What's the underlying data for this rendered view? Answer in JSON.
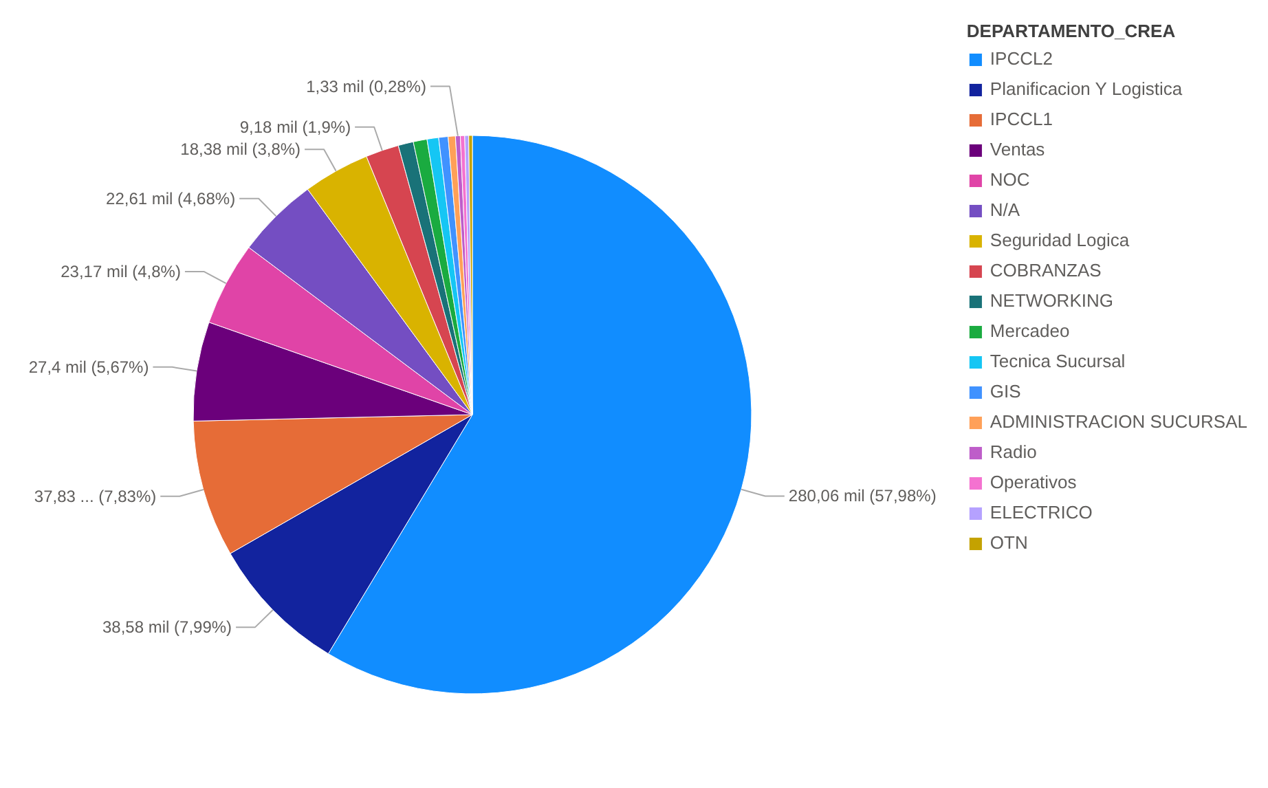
{
  "chart_data": {
    "type": "pie",
    "legend_title": "DEPARTAMENTO_CREA",
    "legend": "right",
    "categories": [
      "IPCCL2",
      "Planificacion Y Logistica",
      "IPCCL1",
      "Ventas",
      "NOC",
      "N/A",
      "Seguridad Logica",
      "COBRANZAS",
      "NETWORKING",
      "Mercadeo",
      "Tecnica Sucursal",
      "GIS",
      "ADMINISTRACION SUCURSAL",
      "Radio",
      "Operativos",
      "ELECTRICO",
      "OTN"
    ],
    "values": [
      280.06,
      38.58,
      37.83,
      27.4,
      23.17,
      22.61,
      18.38,
      9.18,
      4.2,
      3.8,
      3.2,
      2.6,
      2.0,
      1.33,
      1.2,
      1.1,
      1.0
    ],
    "value_labels": [
      "280,06 mil (57,98%)",
      "38,58 mil (7,99%)",
      "37,83 ... (7,83%)",
      "27,4 mil (5,67%)",
      "23,17 mil (4,8%)",
      "22,61 mil (4,68%)",
      "18,38 mil (3,8%)",
      "9,18 mil (1,9%)",
      null,
      null,
      null,
      null,
      null,
      "1,33 mil (0,28%)",
      null,
      null,
      null
    ],
    "colors": [
      "#118dff",
      "#12239e",
      "#e66c37",
      "#6b007b",
      "#e044a7",
      "#744ec2",
      "#d9b300",
      "#d64550",
      "#197278",
      "#1aab40",
      "#15c6f4",
      "#4092ff",
      "#ffa058",
      "#be5dc9",
      "#f472d0",
      "#b5a1ff",
      "#c4a200"
    ]
  }
}
